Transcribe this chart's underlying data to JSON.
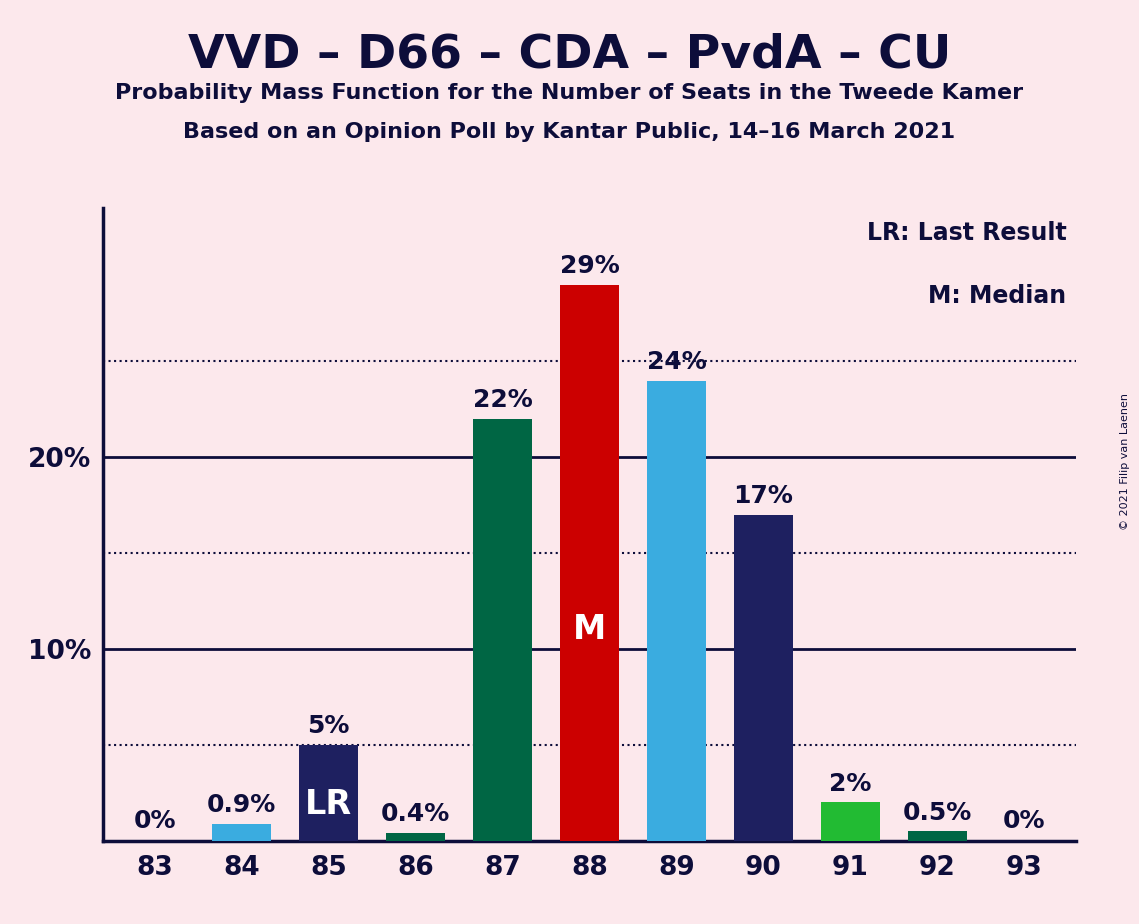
{
  "title": "VVD – D66 – CDA – PvdA – CU",
  "subtitle1": "Probability Mass Function for the Number of Seats in the Tweede Kamer",
  "subtitle2": "Based on an Opinion Poll by Kantar Public, 14–16 March 2021",
  "copyright": "© 2021 Filip van Laenen",
  "seats": [
    83,
    84,
    85,
    86,
    87,
    88,
    89,
    90,
    91,
    92,
    93
  ],
  "values": [
    0.0,
    0.9,
    5.0,
    0.4,
    22.0,
    29.0,
    24.0,
    17.0,
    2.0,
    0.5,
    0.0
  ],
  "bar_colors": [
    "#1e2060",
    "#3aace0",
    "#1e2060",
    "#006644",
    "#006644",
    "#cc0000",
    "#3aace0",
    "#1e2060",
    "#22bb33",
    "#006644",
    "#1e2060"
  ],
  "value_labels": [
    "0%",
    "0.9%",
    "5%",
    "0.4%",
    "22%",
    "29%",
    "24%",
    "17%",
    "2%",
    "0.5%",
    "0%"
  ],
  "special_labels": {
    "2": "LR",
    "5": "M"
  },
  "background_color": "#fce8ec",
  "text_color": "#0d0d3a",
  "yticks": [
    10,
    20
  ],
  "ytick_labels": [
    "10%",
    "20%"
  ],
  "dotted_lines": [
    5,
    15,
    25
  ],
  "legend_text1": "LR: Last Result",
  "legend_text2": "M: Median",
  "ylim": [
    0,
    33
  ]
}
